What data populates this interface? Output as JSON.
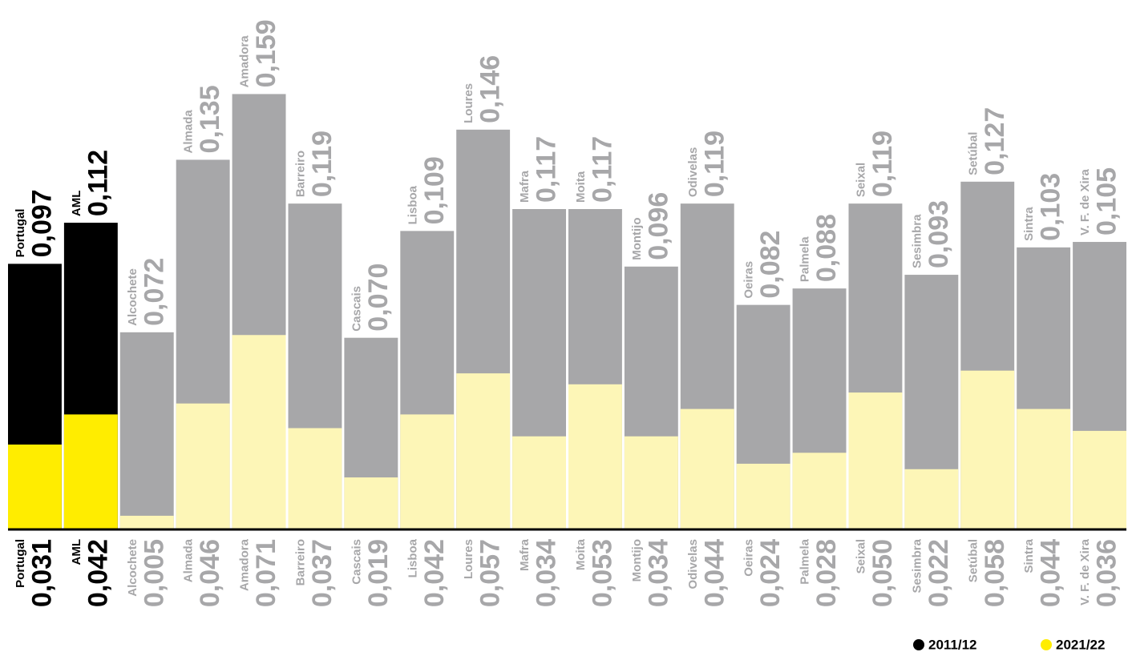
{
  "chart_data": {
    "type": "overlapping_bar",
    "categories": [
      "Portugal",
      "AML",
      "Alcochete",
      "Almada",
      "Amadora",
      "Barreiro",
      "Cascais",
      "Lisboa",
      "Loures",
      "Mafra",
      "Moita",
      "Montijo",
      "Odivelas",
      "Oeiras",
      "Palmela",
      "Seixal",
      "Sesimbra",
      "Setúbal",
      "Sintra",
      "V. F. de Xira"
    ],
    "series": [
      {
        "name": "2011/12",
        "color": "#000000",
        "values": [
          0.097,
          0.112,
          0.072,
          0.135,
          0.159,
          0.119,
          0.07,
          0.109,
          0.146,
          0.117,
          0.117,
          0.096,
          0.119,
          0.082,
          0.088,
          0.119,
          0.093,
          0.127,
          0.103,
          0.105
        ],
        "value_labels": [
          "0,097",
          "0,112",
          "0,072",
          "0,135",
          "0,159",
          "0,119",
          "0,070",
          "0,109",
          "0,146",
          "0,117",
          "0,117",
          "0,096",
          "0,119",
          "0,082",
          "0,088",
          "0,119",
          "0,093",
          "0,127",
          "0,103",
          "0,105"
        ],
        "bar_colors": [
          "#000000",
          "#000000",
          "#a7a7a9",
          "#a7a7a9",
          "#a7a7a9",
          "#a7a7a9",
          "#a7a7a9",
          "#a7a7a9",
          "#a7a7a9",
          "#a7a7a9",
          "#a7a7a9",
          "#a7a7a9",
          "#a7a7a9",
          "#a7a7a9",
          "#a7a7a9",
          "#a7a7a9",
          "#a7a7a9",
          "#a7a7a9",
          "#a7a7a9",
          "#a7a7a9"
        ]
      },
      {
        "name": "2021/22",
        "color": "#ffed00",
        "values": [
          0.031,
          0.042,
          0.005,
          0.046,
          0.071,
          0.037,
          0.019,
          0.042,
          0.057,
          0.034,
          0.053,
          0.034,
          0.044,
          0.024,
          0.028,
          0.05,
          0.022,
          0.058,
          0.044,
          0.036
        ],
        "value_labels": [
          "0,031",
          "0,042",
          "0,005",
          "0,046",
          "0,071",
          "0,037",
          "0,019",
          "0,042",
          "0,057",
          "0,034",
          "0,053",
          "0,034",
          "0,044",
          "0,024",
          "0,028",
          "0,050",
          "0,022",
          "0,058",
          "0,044",
          "0,036"
        ],
        "bar_colors": [
          "#ffed00",
          "#ffed00",
          "#fdf6b7",
          "#fdf6b7",
          "#fdf6b7",
          "#fdf6b7",
          "#fdf6b7",
          "#fdf6b7",
          "#fdf6b7",
          "#fdf6b7",
          "#fdf6b7",
          "#fdf6b7",
          "#fdf6b7",
          "#fdf6b7",
          "#fdf6b7",
          "#fdf6b7",
          "#fdf6b7",
          "#fdf6b7",
          "#fdf6b7",
          "#fdf6b7"
        ]
      }
    ],
    "ylim": [
      0,
      0.16
    ]
  }
}
